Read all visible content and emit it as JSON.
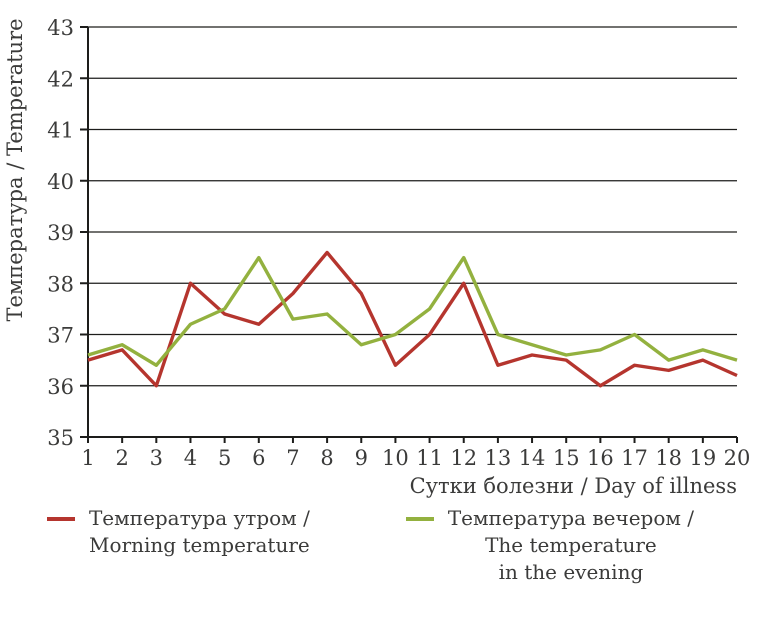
{
  "chart_data": {
    "type": "line",
    "x": [
      1,
      2,
      3,
      4,
      5,
      6,
      7,
      8,
      9,
      10,
      11,
      12,
      13,
      14,
      15,
      16,
      17,
      18,
      19,
      20
    ],
    "series": [
      {
        "id": "morning-temperature",
        "name": "Температура утром / Morning temperature",
        "color": "#b5352e",
        "values": [
          36.5,
          36.7,
          36.0,
          38.0,
          37.4,
          37.2,
          37.8,
          38.6,
          37.8,
          36.4,
          37.0,
          38.0,
          36.4,
          36.6,
          36.5,
          36.0,
          36.4,
          36.3,
          36.5,
          36.2
        ]
      },
      {
        "id": "evening-temperature",
        "name": "Температура вечером / The temperature in the evening",
        "color": "#93b13f",
        "values": [
          36.6,
          36.8,
          36.4,
          37.2,
          37.5,
          38.5,
          37.3,
          37.4,
          36.8,
          37.0,
          37.5,
          38.5,
          37.0,
          36.8,
          36.6,
          36.7,
          37.0,
          36.5,
          36.7,
          36.5
        ]
      }
    ],
    "xlabel": "Сутки болезни / Day of illness",
    "ylabel": "Температура / Temperature",
    "xlim": [
      1,
      20
    ],
    "ylim": [
      35,
      43
    ],
    "yticks": [
      35,
      36,
      37,
      38,
      39,
      40,
      41,
      42,
      43
    ],
    "xticks": [
      1,
      2,
      3,
      4,
      5,
      6,
      7,
      8,
      9,
      10,
      11,
      12,
      13,
      14,
      15,
      16,
      17,
      18,
      19,
      20
    ],
    "grid": "horizontal",
    "legend_position": "bottom"
  },
  "legend": {
    "items": [
      {
        "color": "#b5352e",
        "lines": [
          "Температура утром /",
          "Morning temperature"
        ]
      },
      {
        "color": "#93b13f",
        "lines": [
          "Температура вечером /",
          "The temperature",
          "in the evening"
        ]
      }
    ]
  },
  "colors": {
    "axis": "#1d1d1b",
    "grid": "#1d1d1b",
    "text": "#3b3b3a"
  }
}
